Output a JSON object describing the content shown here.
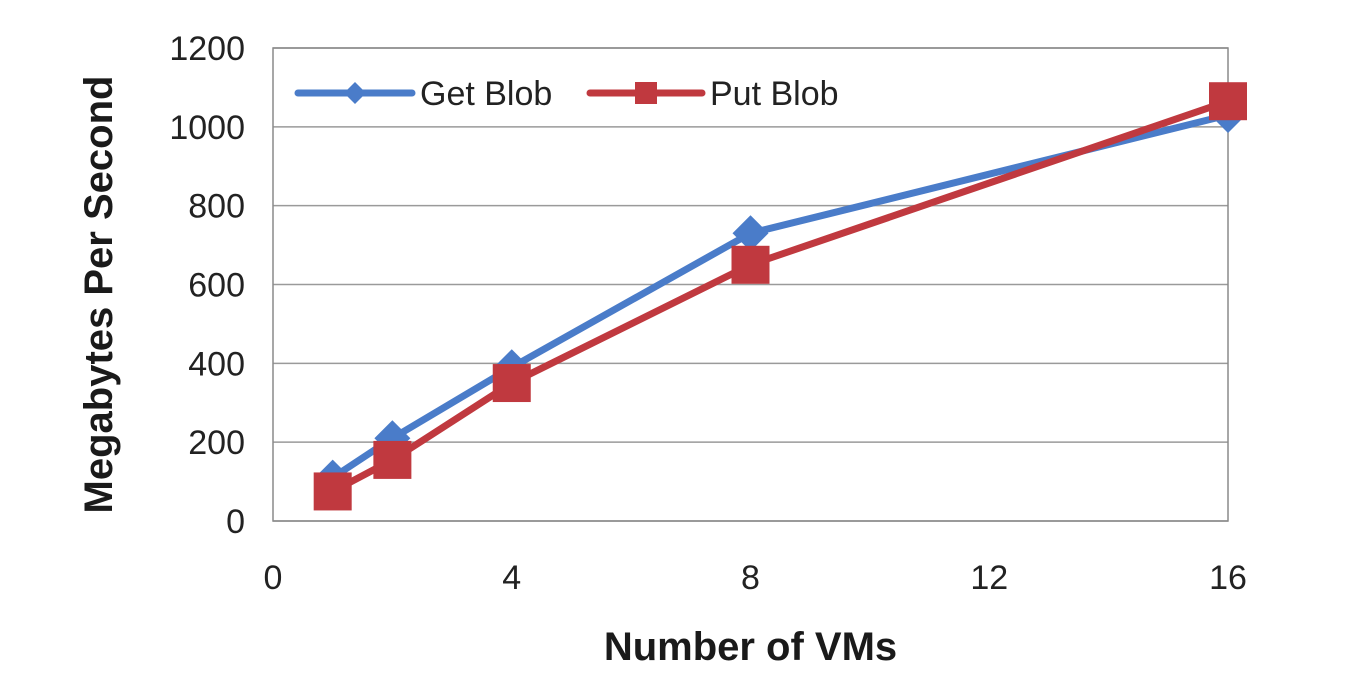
{
  "chart_data": {
    "type": "line",
    "title": "",
    "xlabel": "Number of VMs",
    "ylabel": "Megabytes Per Second",
    "xlim": [
      0,
      16
    ],
    "ylim": [
      0,
      1200
    ],
    "xticks": [
      0,
      4,
      8,
      12,
      16
    ],
    "yticks": [
      0,
      200,
      400,
      600,
      800,
      1000,
      1200
    ],
    "grid": "horizontal",
    "legend_position": "top-left",
    "series": [
      {
        "name": "Get Blob",
        "color": "#4a7cc9",
        "marker": "diamond",
        "x": [
          1,
          2,
          4,
          8,
          16
        ],
        "y": [
          110,
          210,
          390,
          730,
          1030
        ]
      },
      {
        "name": "Put Blob",
        "color": "#c0393f",
        "marker": "square",
        "x": [
          1,
          2,
          4,
          8,
          16
        ],
        "y": [
          75,
          155,
          350,
          650,
          1065
        ]
      }
    ]
  }
}
